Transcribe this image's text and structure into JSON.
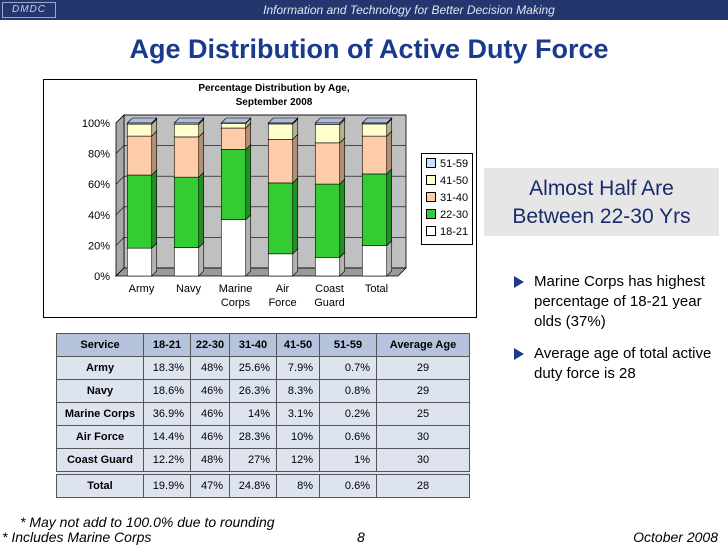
{
  "header": {
    "logo": "DMDC",
    "tagline": "Information and Technology for Better Decision Making"
  },
  "page_title": "Age Distribution of Active Duty Force",
  "chart_data": {
    "type": "bar",
    "stacked": true,
    "title_lines": [
      "Percentage Distribution by Age,",
      "September 2008"
    ],
    "categories": [
      [
        "Army"
      ],
      [
        "Navy"
      ],
      [
        "Marine",
        "Corps"
      ],
      [
        "Air",
        "Force"
      ],
      [
        "Coast",
        "Guard"
      ],
      [
        "Total"
      ]
    ],
    "series": [
      {
        "name": "18-21",
        "color": "#ffffff",
        "values": [
          18.3,
          18.6,
          36.9,
          14.4,
          12.2,
          19.9
        ]
      },
      {
        "name": "22-30",
        "color": "#33cc33",
        "values": [
          48,
          46,
          46,
          46,
          48,
          47
        ]
      },
      {
        "name": "31-40",
        "color": "#ffccaa",
        "values": [
          25.6,
          26.3,
          14,
          28.3,
          27,
          24.8
        ]
      },
      {
        "name": "41-50",
        "color": "#ffffcc",
        "values": [
          7.9,
          8.3,
          3.1,
          10,
          12,
          8
        ]
      },
      {
        "name": "51-59",
        "color": "#ccddff",
        "values": [
          0.7,
          0.8,
          0.2,
          0.6,
          1,
          0.6
        ]
      }
    ],
    "yticks": [
      "0%",
      "20%",
      "40%",
      "60%",
      "80%",
      "100%"
    ],
    "ylim": [
      0,
      100
    ],
    "plot_area_color": "#c0c0c0",
    "grid": true,
    "legend_position": "right"
  },
  "callout": {
    "line1": "Almost Half Are",
    "line2": "Between 22-30 Yrs"
  },
  "bullets": [
    "Marine Corps has highest percentage of 18-21 year olds (37%)",
    "Average age of total active duty force is 28"
  ],
  "table": {
    "headers": [
      "Service",
      "18-21",
      "22-30",
      "31-40",
      "41-50",
      "51-59",
      "Average Age"
    ],
    "rows": [
      [
        "Army",
        "18.3%",
        "48%",
        "25.6%",
        "7.9%",
        "0.7%",
        "29"
      ],
      [
        "Navy",
        "18.6%",
        "46%",
        "26.3%",
        "8.3%",
        "0.8%",
        "29"
      ],
      [
        "Marine Corps",
        "36.9%",
        "46%",
        "14%",
        "3.1%",
        "0.2%",
        "25"
      ],
      [
        "Air Force",
        "14.4%",
        "46%",
        "28.3%",
        "10%",
        "0.6%",
        "30"
      ],
      [
        "Coast Guard",
        "12.2%",
        "48%",
        "27%",
        "12%",
        "1%",
        "30"
      ],
      [
        "Total",
        "19.9%",
        "47%",
        "24.8%",
        "8%",
        "0.6%",
        "28"
      ]
    ]
  },
  "footer": {
    "note1": "* May not add to 100.0% due to rounding",
    "note2": "* Includes Marine Corps",
    "page": "8",
    "date": "October 2008"
  }
}
